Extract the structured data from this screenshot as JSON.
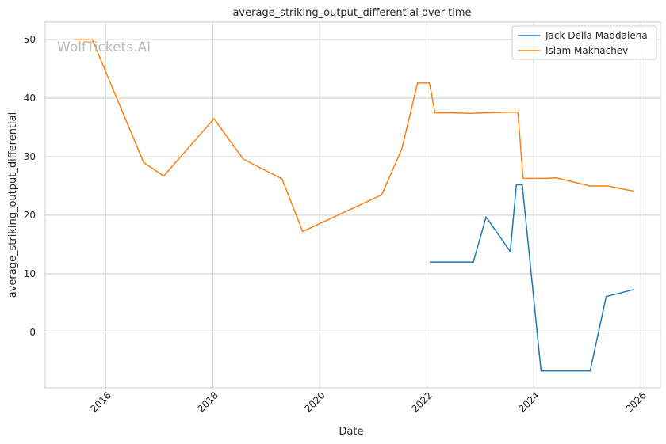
{
  "chart_data": {
    "type": "line",
    "title": "average_striking_output_differential over time",
    "xlabel": "Date",
    "ylabel": "average_striking_output_differential",
    "x_ticks": [
      "2016",
      "2018",
      "2020",
      "2022",
      "2024",
      "2026"
    ],
    "y_ticks": [
      0,
      10,
      20,
      30,
      40,
      50
    ],
    "xlim": [
      "2014-11-15",
      "2026-05-15"
    ],
    "ylim": [
      -9.5,
      53
    ],
    "grid": true,
    "legend_position": "top-right",
    "watermark": "WolfTickets.AI",
    "series": [
      {
        "name": "Jack Della Maddalena",
        "color": "#1f77b4",
        "points": [
          [
            "2022-01-20",
            12.0
          ],
          [
            "2022-06-01",
            12.0
          ],
          [
            "2022-11-15",
            12.0
          ],
          [
            "2023-02-10",
            19.7
          ],
          [
            "2023-07-25",
            13.8
          ],
          [
            "2023-09-05",
            25.2
          ],
          [
            "2023-10-15",
            25.2
          ],
          [
            "2024-02-20",
            -6.6
          ],
          [
            "2024-08-01",
            -6.6
          ],
          [
            "2025-01-20",
            -6.6
          ],
          [
            "2025-05-10",
            6.1
          ],
          [
            "2025-11-15",
            7.3
          ]
        ]
      },
      {
        "name": "Islam Makhachev",
        "color": "#ff7f0e",
        "points": [
          [
            "2015-05-30",
            50.0
          ],
          [
            "2015-10-03",
            50.0
          ],
          [
            "2016-09-17",
            29.0
          ],
          [
            "2017-02-01",
            26.7
          ],
          [
            "2018-01-10",
            36.5
          ],
          [
            "2018-07-28",
            29.6
          ],
          [
            "2019-04-20",
            26.2
          ],
          [
            "2019-09-07",
            17.2
          ],
          [
            "2021-02-28",
            23.5
          ],
          [
            "2021-07-16",
            31.4
          ],
          [
            "2021-10-30",
            42.6
          ],
          [
            "2022-01-20",
            42.6
          ],
          [
            "2022-02-26",
            37.5
          ],
          [
            "2022-06-15",
            37.5
          ],
          [
            "2022-10-22",
            37.4
          ],
          [
            "2023-02-12",
            37.5
          ],
          [
            "2023-08-01",
            37.6
          ],
          [
            "2023-09-15",
            37.6
          ],
          [
            "2023-10-21",
            26.3
          ],
          [
            "2024-04-01",
            26.3
          ],
          [
            "2024-06-01",
            26.4
          ],
          [
            "2025-01-18",
            25.0
          ],
          [
            "2025-05-20",
            25.0
          ],
          [
            "2025-11-15",
            24.1
          ]
        ]
      }
    ]
  }
}
